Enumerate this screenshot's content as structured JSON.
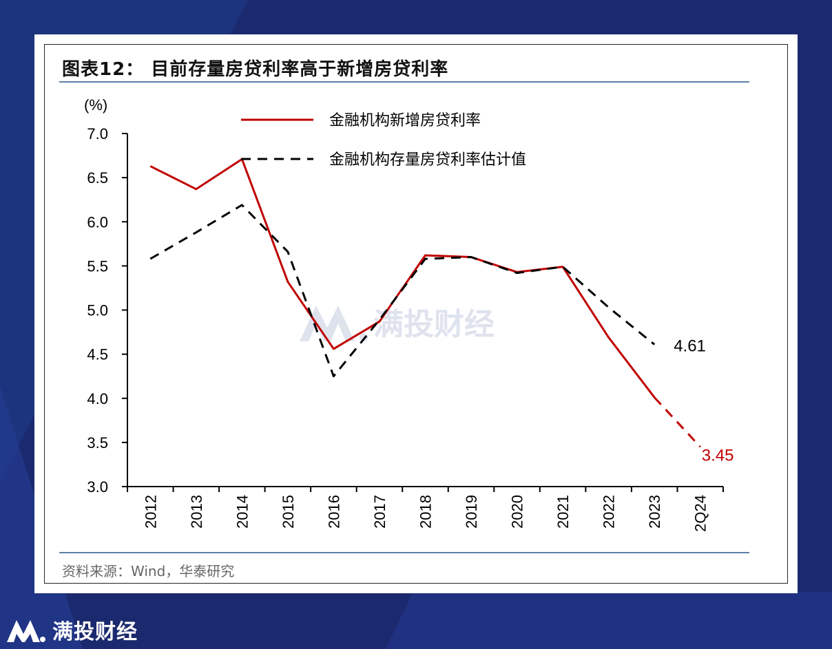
{
  "page": {
    "title": "图表12： 目前存量房贷利率高于新增房贷利率",
    "source": "资料来源：Wind，华泰研究",
    "watermark": "满投财经",
    "brand": "满投财经"
  },
  "chart_data": {
    "type": "line",
    "ylabel": "(%)",
    "ylim": [
      3.0,
      7.0
    ],
    "yticks": [
      "3.0",
      "3.5",
      "4.0",
      "4.5",
      "5.0",
      "5.5",
      "6.0",
      "6.5",
      "7.0"
    ],
    "categories": [
      "2012",
      "2013",
      "2014",
      "2015",
      "2016",
      "2017",
      "2018",
      "2019",
      "2020",
      "2021",
      "2022",
      "2023",
      "2Q24"
    ],
    "grid": false,
    "legend_position": "top-center",
    "series": [
      {
        "name": "金融机构新增房贷利率",
        "color": "#c00000",
        "style": "solid",
        "values": [
          6.63,
          6.37,
          6.71,
          5.32,
          4.56,
          4.87,
          5.62,
          5.6,
          5.43,
          5.49,
          4.69,
          4.01,
          3.45
        ],
        "dashed_from_index": 11,
        "end_label": "3.45"
      },
      {
        "name": "金融机构存量房贷利率估计值",
        "color": "#000000",
        "style": "dashed",
        "values": [
          5.58,
          5.88,
          6.19,
          5.66,
          4.25,
          4.89,
          5.58,
          5.6,
          5.42,
          5.49,
          5.03,
          4.61,
          null
        ],
        "end_label": "4.61"
      }
    ]
  }
}
